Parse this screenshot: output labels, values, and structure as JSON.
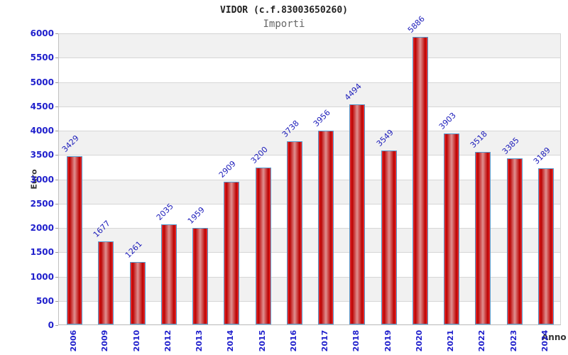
{
  "header": {
    "title": "VIDOR (c.f.83003650260)",
    "subtitle": "Importi"
  },
  "chart_data": {
    "type": "bar",
    "title": "VIDOR (c.f.83003650260)",
    "subtitle": "Importi",
    "xlabel": "Anno",
    "ylabel": "Euro",
    "categories": [
      "2006",
      "2009",
      "2010",
      "2012",
      "2013",
      "2014",
      "2015",
      "2016",
      "2017",
      "2018",
      "2019",
      "2020",
      "2021",
      "2022",
      "2023",
      "2024"
    ],
    "values": [
      3429,
      1677,
      1261,
      2035,
      1959,
      2909,
      3200,
      3738,
      3956,
      4494,
      3549,
      5886,
      3903,
      3518,
      3385,
      3189
    ],
    "ylim": [
      0,
      6000
    ],
    "ytick_step": 500,
    "yticks": [
      0,
      500,
      1000,
      1500,
      2000,
      2500,
      3000,
      3500,
      4000,
      4500,
      5000,
      5500,
      6000
    ],
    "grid": true,
    "legend": null,
    "colors": {
      "bar_fill_dark": "#bb0000",
      "bar_fill_light": "#e09090",
      "bar_edge_bright": "#ee3333",
      "bar_border": "#5599cc",
      "tick_text": "#1f1fcc",
      "value_text": "#2020bb",
      "band_gray": "#f1f1f1",
      "grid_line": "#d6d6d6",
      "axis_text": "#333333"
    }
  }
}
